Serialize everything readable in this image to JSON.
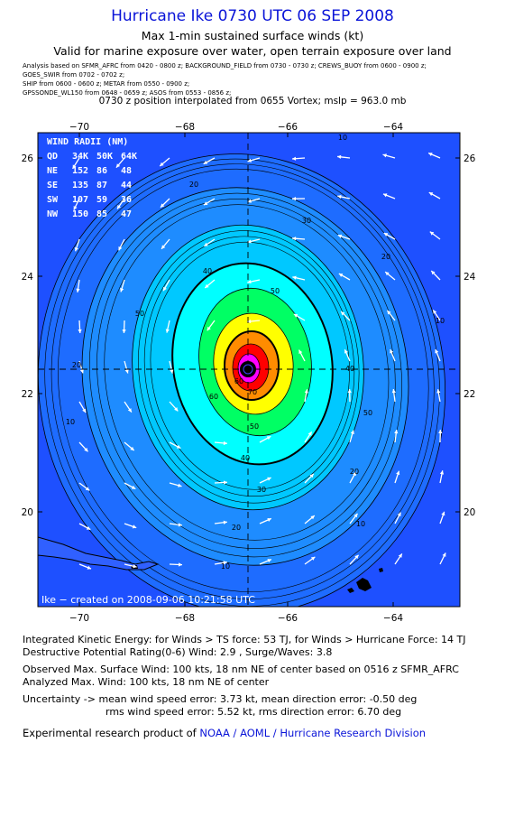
{
  "header": {
    "title": "Hurricane Ike 0730 UTC 06 SEP 2008",
    "subtitle1": "Max 1-min sustained surface winds (kt)",
    "subtitle2": "Valid for marine exposure over water, open terrain exposure over land",
    "sources": [
      "Analysis based on  SFMR_AFRC from 0420 - 0800 z;  BACKGROUND_FIELD from 0730 - 0730 z;  CREWS_BUOY from 0600 - 0900 z;",
      "GOES_SWIR from 0702 - 0702 z;",
      "SHIP from 0600 - 0600 z;  METAR from 0550 - 0900 z;",
      "GPSSONDE_WL150 from 0648 - 0659 z;  ASOS from 0553 - 0856 z;"
    ],
    "vortex": "0730 z position interpolated from 0655 Vortex; mslp = 963.0 mb"
  },
  "map": {
    "top_labels": [
      "−70",
      "−68",
      "−66",
      "−64"
    ],
    "bottom_labels": [
      "−70",
      "−68",
      "−66",
      "−64"
    ],
    "left_labels": [
      "26",
      "24",
      "22",
      "20"
    ],
    "right_labels": [
      "26",
      "24",
      "22",
      "20"
    ],
    "credit": "Ike − created on 2008-09-06 10:21:58 UTC",
    "contour_labels": [
      "10",
      "20",
      "30",
      "40",
      "50",
      "60",
      "70",
      "80"
    ],
    "colors": {
      "ocean": "#1e50ff",
      "band_10": "#1e6cff",
      "band_20": "#1e8cff",
      "band_30": "#00c8ff",
      "band_40": "#00ffff",
      "band_50": "#00ff64",
      "band_60": "#ffff00",
      "band_70": "#ff8c00",
      "band_80": "#ff0000",
      "band_90": "#ff00ff"
    },
    "wind_radii": {
      "title": "WIND RADII (NM)",
      "header": [
        "QD",
        "34K",
        "50K",
        "64K"
      ],
      "rows": [
        [
          "NE",
          "152",
          "86",
          "48"
        ],
        [
          "SE",
          "135",
          "87",
          "44"
        ],
        [
          "SW",
          "107",
          "59",
          "36"
        ],
        [
          "NW",
          "150",
          "85",
          "47"
        ]
      ]
    }
  },
  "footer": {
    "ike": "Integrated Kinetic Energy:  for Winds > TS force: 53 TJ,  for Winds > Hurricane Force: 14 TJ",
    "dpr": "Destructive Potential Rating(0-6)   Wind: 2.9 , Surge/Waves: 3.8",
    "obs": "Observed Max. Surface Wind: 100 kts, 18 nm NE of center based on 0516 z SFMR_AFRC",
    "analyzed": "Analyzed Max. Wind: 100 kts, 18 nm NE of center",
    "uncert1": "Uncertainty -> mean wind speed error: 3.73 kt,   mean direction error:  -0.50 deg",
    "uncert2": "rms wind speed error: 5.52 kt,   rms direction error: 6.70 deg",
    "product_prefix": "Experimental research product of ",
    "product_link": "NOAA / AOML / Hurricane Research Division"
  }
}
